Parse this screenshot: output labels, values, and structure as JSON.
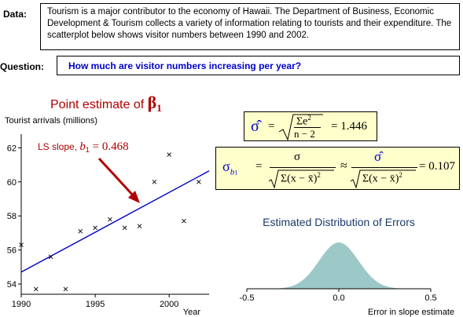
{
  "data_label": "Data:",
  "data_text": "Tourism is a major contributor to the economy of Hawaii. The  Department of Business, Economic Development & Tourism collects a variety of information relating to tourists and their expenditure. The scatterplot below shows visitor numbers between 1990 and 2002.",
  "question_label": "Question:",
  "question_text": "How  much are visitor numbers increasing per year?",
  "point_estimate": {
    "text": "Point estimate of ",
    "symbol": "β",
    "sub": "1"
  },
  "colors": {
    "title_red": "#b00000",
    "question_blue": "#0000cc",
    "line_blue": "#0000cc",
    "formula_bg": "#ffffcc",
    "dist_fill": "#9cc8c8",
    "dist_title": "#1a3a6a"
  },
  "sigma_formula": {
    "lhs": "σ̂",
    "eq": "=",
    "num": "Σe",
    "num_sup": "2",
    "den": "n − 2",
    "result": "=  1.446"
  },
  "sigma_b1_formula": {
    "lhs": "σ",
    "lhs_sub": "b",
    "lhs_subsub": "1",
    "eq": "=",
    "num": "σ",
    "den": "Σ(x − x̄)",
    "den_sup": "2",
    "approx": "≈",
    "num2": "σ̂",
    "den2": "Σ(x − x̄)",
    "den2_sup": "2",
    "result": "=  0.107"
  },
  "chart_data": [
    {
      "type": "scatter",
      "ylabel": "Tourist arrivals (millions)",
      "xlabel": "Year",
      "x_ticks": [
        "1990",
        "1995",
        "2000"
      ],
      "y_ticks": [
        "54",
        "56",
        "58",
        "60",
        "62"
      ],
      "xlim": [
        1990,
        2002.7
      ],
      "ylim": [
        53.4,
        62.8
      ],
      "points": [
        {
          "x": 1990,
          "y": 56.3
        },
        {
          "x": 1991,
          "y": 53.7
        },
        {
          "x": 1992,
          "y": 55.6
        },
        {
          "x": 1993,
          "y": 53.7
        },
        {
          "x": 1994,
          "y": 57.1
        },
        {
          "x": 1995,
          "y": 57.3
        },
        {
          "x": 1996,
          "y": 57.8
        },
        {
          "x": 1997,
          "y": 57.3
        },
        {
          "x": 1998,
          "y": 57.4
        },
        {
          "x": 1999,
          "y": 60.0
        },
        {
          "x": 2000,
          "y": 61.6
        },
        {
          "x": 2001,
          "y": 57.7
        },
        {
          "x": 2002,
          "y": 60.0
        }
      ],
      "ls_line": {
        "intercept_at_1990": 54.7,
        "slope": 0.468
      },
      "annotation": {
        "text": "LS slope, ",
        "b": "b",
        "sub": "1",
        "value": " = 0.468"
      }
    },
    {
      "type": "area",
      "title": "Estimated Distribution of Errors",
      "xlabel": "Error in slope estimate",
      "x_ticks": [
        "-0.5",
        "0.0",
        "0.5"
      ],
      "xlim": [
        -0.5,
        0.5
      ],
      "distribution": {
        "mean": 0.0,
        "sd": 0.107
      }
    }
  ]
}
